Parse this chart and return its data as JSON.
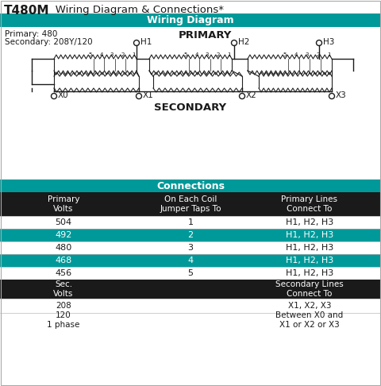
{
  "title_bold": "T480M",
  "title_rest": "   Wiring Diagram & Connections*",
  "section1_header": "Wiring Diagram",
  "primary_label": "Primary: 480",
  "secondary_label": "Secondary: 208Y/120",
  "primary_title": "PRIMARY",
  "secondary_title": "SECONDARY",
  "h_labels": [
    "H1",
    "H2",
    "H3"
  ],
  "x_labels": [
    "X0",
    "X1",
    "X2",
    "X3"
  ],
  "section2_header": "Connections",
  "col_headers": [
    "Primary\nVolts",
    "On Each Coil\nJumper Taps To",
    "Primary Lines\nConnect To"
  ],
  "data_rows": [
    [
      "504",
      "1",
      "H1, H2, H3"
    ],
    [
      "492",
      "2",
      "H1, H2, H3"
    ],
    [
      "480",
      "3",
      "H1, H2, H3"
    ],
    [
      "468",
      "4",
      "H1, H2, H3"
    ],
    [
      "456",
      "5",
      "H1, H2, H3"
    ]
  ],
  "teal_rows": [
    1,
    3
  ],
  "sec_header_row": [
    "Sec.\nVolts",
    "",
    "Secondary Lines\nConnect To"
  ],
  "sec_data_rows": [
    [
      "208",
      "",
      "X1, X2, X3"
    ],
    [
      "120\n1 phase",
      "",
      "Between X0 and\nX1 or X2 or X3"
    ]
  ],
  "teal_color": "#009999",
  "black_color": "#1a1a1a",
  "white_color": "#ffffff",
  "bg_color": "#ffffff",
  "mid_gray": "#aaaaaa",
  "dark_gray": "#444444"
}
